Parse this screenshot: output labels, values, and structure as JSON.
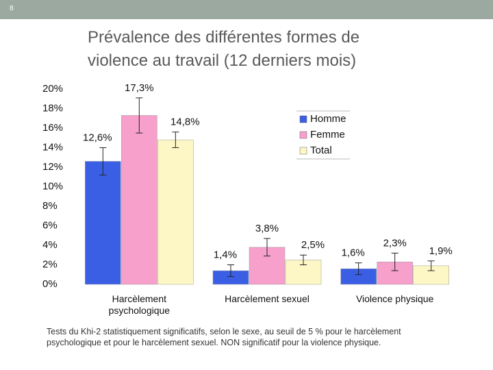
{
  "slide_number": "8",
  "chart_data": {
    "type": "bar",
    "title": "Prévalence des différentes formes de violence au travail (12 derniers mois)",
    "categories": [
      "Harcèlement psychologique",
      "Harcèlement sexuel",
      "Violence physique"
    ],
    "series": [
      {
        "name": "Homme",
        "color": "#3a5fe5",
        "values": [
          12.6,
          1.4,
          1.6
        ],
        "value_labels": [
          "12,6%",
          "1,4%",
          "1,6%"
        ],
        "errors": [
          1.4,
          0.6,
          0.6
        ]
      },
      {
        "name": "Femme",
        "color": "#f6a0cb",
        "values": [
          17.3,
          3.8,
          2.3
        ],
        "value_labels": [
          "17,3%",
          "3,8%",
          "2,3%"
        ],
        "errors": [
          1.8,
          0.9,
          0.9
        ]
      },
      {
        "name": "Total",
        "color": "#fdf7c5",
        "values": [
          14.8,
          2.5,
          1.9
        ],
        "value_labels": [
          "14,8%",
          "2,5%",
          "1,9%"
        ],
        "errors": [
          0.8,
          0.5,
          0.5
        ]
      }
    ],
    "ylim": [
      0,
      20
    ],
    "yticks": [
      {
        "value": 0,
        "label": "0%"
      },
      {
        "value": 2,
        "label": "2%"
      },
      {
        "value": 4,
        "label": "4%"
      },
      {
        "value": 6,
        "label": "6%"
      },
      {
        "value": 8,
        "label": "8%"
      },
      {
        "value": 10,
        "label": "10%"
      },
      {
        "value": 12,
        "label": "12%"
      },
      {
        "value": 14,
        "label": "14%"
      },
      {
        "value": 16,
        "label": "16%"
      },
      {
        "value": 18,
        "label": "18%"
      },
      {
        "value": 20,
        "label": "20%"
      }
    ],
    "legend": "upper right",
    "footnote": "Tests du Khi-2 statistiquement significatifs, selon le sexe, au seuil de 5 % pour le harcèlement psychologique et pour le harcèlement sexuel. NON significatif pour la violence physique."
  }
}
